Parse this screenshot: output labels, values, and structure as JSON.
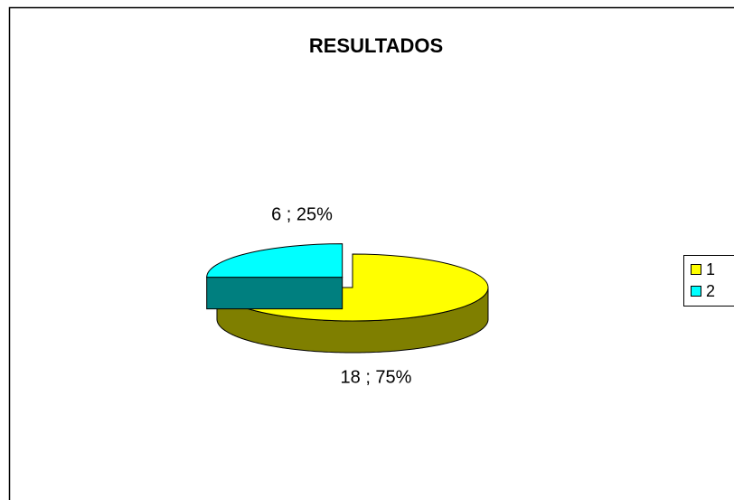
{
  "chart_data": {
    "type": "pie",
    "title": "RESULTADOS",
    "categories": [
      "1",
      "2"
    ],
    "values": [
      18,
      6
    ],
    "value_labels": [
      "18 ; 75%",
      "6 ; 25%"
    ],
    "colors": [
      "#ffff00",
      "#00ffff"
    ],
    "legend": "right"
  }
}
